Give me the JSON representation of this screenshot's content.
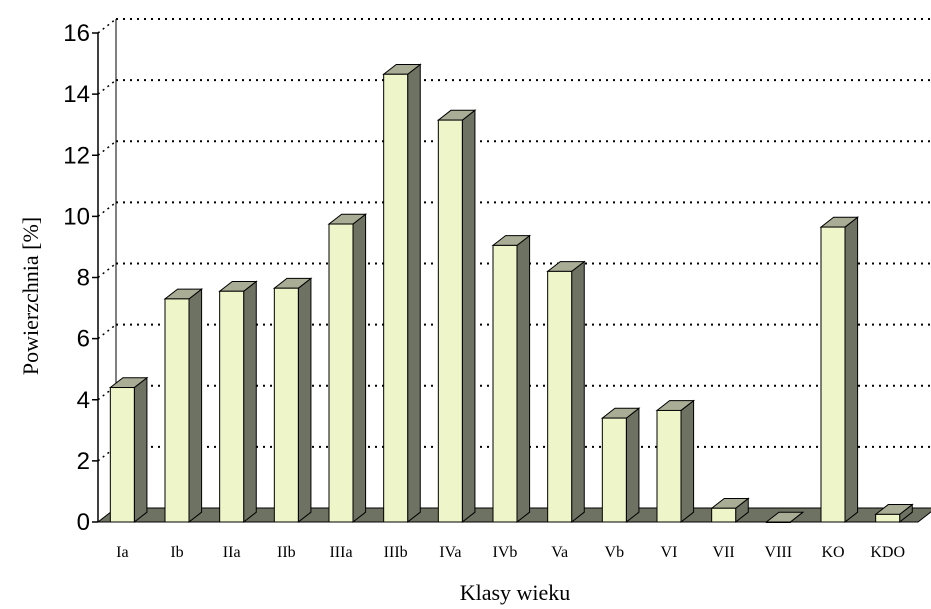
{
  "chart_data": {
    "type": "bar",
    "categories": [
      "Ia",
      "Ib",
      "IIa",
      "IIb",
      "IIIa",
      "IIIb",
      "IVa",
      "IVb",
      "Va",
      "Vb",
      "VI",
      "VII",
      "VIII",
      "KO",
      "KDO"
    ],
    "values": [
      4.4,
      7.3,
      7.55,
      7.65,
      9.75,
      14.65,
      13.15,
      9.05,
      8.2,
      3.4,
      3.65,
      0.45,
      0.0,
      9.65,
      0.25
    ],
    "title": "",
    "xlabel": "Klasy wieku",
    "ylabel": "Powierzchnia [%]",
    "ylim": [
      0,
      16
    ],
    "yticks": [
      "0",
      "2",
      "4",
      "6",
      "8",
      "10",
      "12",
      "14",
      "16"
    ],
    "grid": true,
    "colors": {
      "bar_front": "#eef5c8",
      "bar_side": "#6e7262",
      "bar_top": "#a9ad95",
      "floor": "#6e7262",
      "grid": "#000000"
    }
  }
}
